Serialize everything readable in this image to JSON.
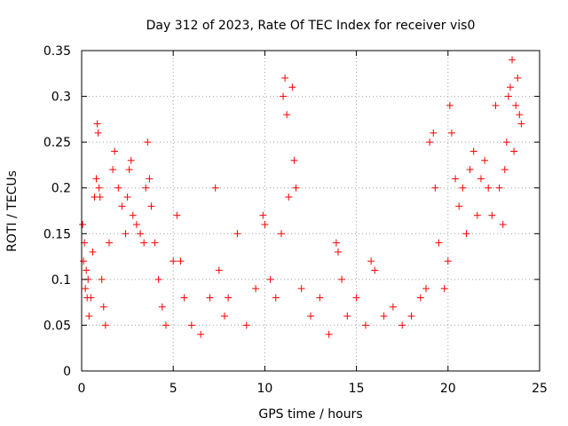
{
  "chart_data": {
    "type": "scatter",
    "title": "Day 312 of 2023, Rate Of TEC Index for receiver vis0",
    "xlabel": "GPS time / hours",
    "ylabel": "ROTI / TECUs",
    "xlim": [
      0,
      25
    ],
    "ylim": [
      0,
      0.35
    ],
    "x_ticks": [
      0,
      5,
      10,
      15,
      20,
      25
    ],
    "x_tick_labels": [
      "0",
      "5",
      "10",
      "15",
      "20",
      "25"
    ],
    "y_ticks": [
      0,
      0.05,
      0.1,
      0.15,
      0.2,
      0.25,
      0.3,
      0.35
    ],
    "y_tick_labels": [
      "0",
      "0.05",
      "0.1",
      "0.15",
      "0.2",
      "0.25",
      "0.3",
      "0.35"
    ],
    "grid": true,
    "marker": "+",
    "color": "#ff0000",
    "series": [
      {
        "x": [
          0.05,
          0.1,
          0.15,
          0.2,
          0.25,
          0.3,
          0.35,
          0.4,
          0.5,
          0.6,
          0.7,
          0.8,
          0.85,
          0.9,
          0.95,
          1.0,
          1.1,
          1.2,
          1.3,
          1.5,
          1.7,
          1.8,
          2.0,
          2.2,
          2.4,
          2.5,
          2.6,
          2.7,
          2.8,
          3.0,
          3.2,
          3.4,
          3.5,
          3.6,
          3.7,
          3.8,
          4.0,
          4.2,
          4.4,
          4.6,
          5.0,
          5.2,
          5.4,
          5.6,
          6.0,
          6.5,
          7.0,
          7.3,
          7.5,
          7.8,
          8.0,
          8.5,
          9.0,
          9.5,
          9.9,
          10.0,
          10.3,
          10.6,
          10.9,
          11.0,
          11.1,
          11.2,
          11.3,
          11.5,
          11.6,
          11.7,
          12.0,
          12.5,
          13.0,
          13.5,
          13.9,
          14.0,
          14.2,
          14.5,
          15.0,
          15.5,
          15.8,
          16.0,
          16.5,
          17.0,
          17.5,
          18.0,
          18.5,
          18.8,
          19.0,
          19.2,
          19.3,
          19.5,
          19.8,
          20.0,
          20.1,
          20.2,
          20.4,
          20.6,
          20.8,
          21.0,
          21.2,
          21.4,
          21.6,
          21.8,
          22.0,
          22.2,
          22.4,
          22.6,
          22.8,
          23.0,
          23.1,
          23.2,
          23.3,
          23.4,
          23.5,
          23.6,
          23.7,
          23.8,
          23.9,
          24.0
        ],
        "y": [
          0.16,
          0.12,
          0.14,
          0.09,
          0.11,
          0.08,
          0.1,
          0.06,
          0.08,
          0.13,
          0.19,
          0.21,
          0.27,
          0.26,
          0.2,
          0.19,
          0.1,
          0.07,
          0.05,
          0.14,
          0.22,
          0.24,
          0.2,
          0.18,
          0.15,
          0.19,
          0.22,
          0.23,
          0.17,
          0.16,
          0.15,
          0.14,
          0.2,
          0.25,
          0.21,
          0.18,
          0.14,
          0.1,
          0.07,
          0.05,
          0.12,
          0.17,
          0.12,
          0.08,
          0.05,
          0.04,
          0.08,
          0.2,
          0.11,
          0.06,
          0.08,
          0.15,
          0.05,
          0.09,
          0.17,
          0.16,
          0.1,
          0.08,
          0.15,
          0.3,
          0.32,
          0.28,
          0.19,
          0.31,
          0.23,
          0.2,
          0.09,
          0.06,
          0.08,
          0.04,
          0.14,
          0.13,
          0.1,
          0.06,
          0.08,
          0.05,
          0.12,
          0.11,
          0.06,
          0.07,
          0.05,
          0.06,
          0.08,
          0.09,
          0.25,
          0.26,
          0.2,
          0.14,
          0.09,
          0.12,
          0.29,
          0.26,
          0.21,
          0.18,
          0.2,
          0.15,
          0.22,
          0.24,
          0.17,
          0.21,
          0.23,
          0.2,
          0.17,
          0.29,
          0.2,
          0.16,
          0.22,
          0.25,
          0.3,
          0.31,
          0.34,
          0.24,
          0.29,
          0.32,
          0.28,
          0.27
        ]
      }
    ]
  }
}
